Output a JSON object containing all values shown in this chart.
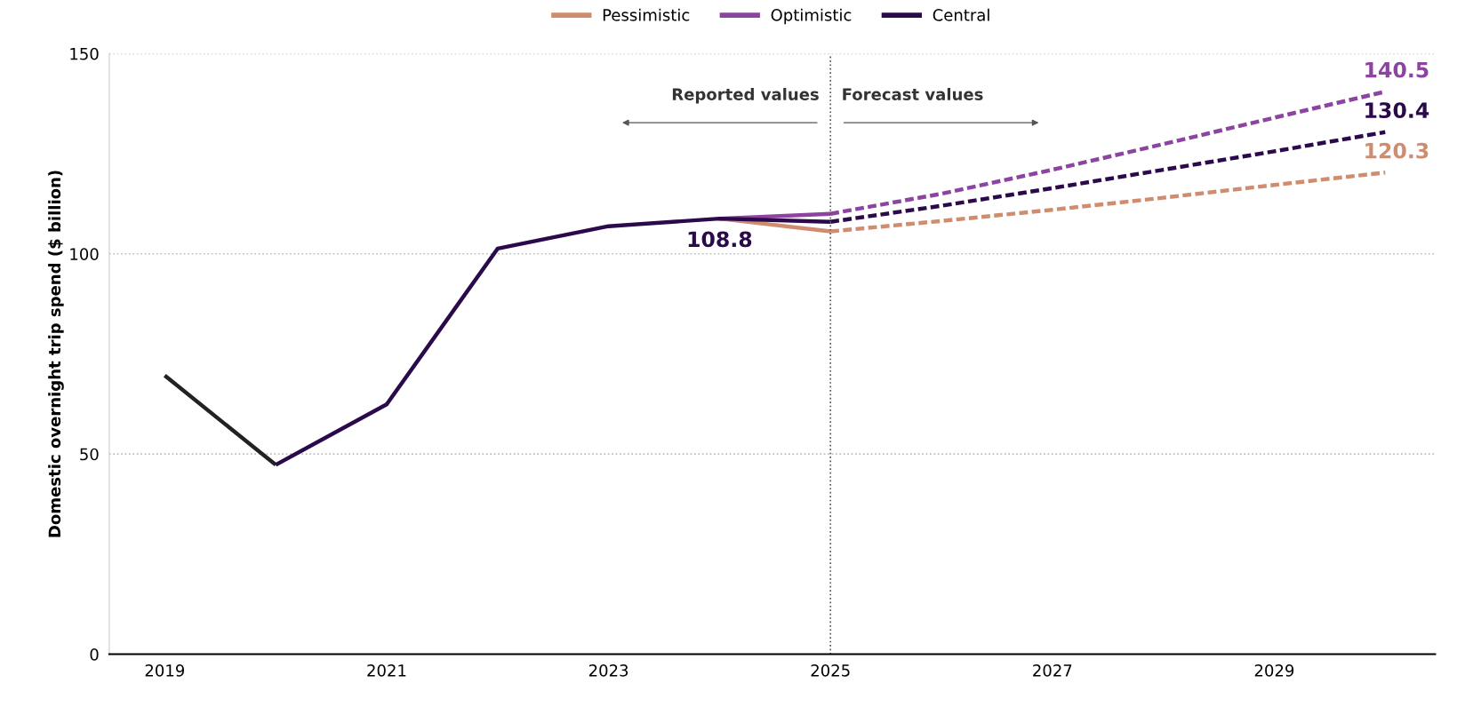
{
  "chart_data": {
    "type": "line",
    "ylabel": "Domestic overnight trip spend ($ billion)",
    "xlim": [
      2018.5,
      2030.45
    ],
    "xticks": [
      2019,
      2021,
      2023,
      2025,
      2027,
      2029
    ],
    "ylim": [
      0,
      150
    ],
    "yticks": [
      0,
      50,
      100,
      150
    ],
    "grid": "y",
    "legend": "top",
    "line_style": "solid",
    "marker": "none",
    "series": [
      {
        "color": "#222222",
        "x": [
          2019,
          2020
        ],
        "values": [
          69.6,
          47.3
        ]
      },
      {
        "name": "Pessimistic",
        "color": "#d08c6e",
        "x": [
          2024,
          2025
        ],
        "values": [
          108.8,
          105.6
        ]
      },
      {
        "name": "Optimistic",
        "color": "#8c44a0",
        "x": [
          2024,
          2025
        ],
        "values": [
          108.8,
          110.0
        ]
      },
      {
        "name": "Central",
        "color": "#2a0a4a",
        "x": [
          2020,
          2021,
          2022,
          2023,
          2024,
          2025
        ],
        "values": [
          47.3,
          62.4,
          101.3,
          106.9,
          108.8,
          108.0
        ],
        "value_labels": [
          null,
          null,
          null,
          null,
          "108.8",
          null
        ]
      },
      {
        "color": "#8c44a0",
        "line_style": "dashed",
        "x": [
          2025,
          2026,
          2027,
          2028,
          2029,
          2030
        ],
        "values": [
          110.0,
          115.0,
          121.0,
          127.4,
          134.0,
          140.5
        ],
        "value_labels": [
          null,
          null,
          null,
          null,
          null,
          "140.5"
        ]
      },
      {
        "color": "#2a0a4a",
        "line_style": "dashed",
        "x": [
          2025,
          2026,
          2027,
          2028,
          2029,
          2030
        ],
        "values": [
          108.0,
          112.0,
          116.4,
          121.0,
          125.6,
          130.4
        ],
        "value_labels": [
          null,
          null,
          null,
          null,
          null,
          "130.4"
        ]
      },
      {
        "color": "#d08c6e",
        "line_style": "dashed",
        "x": [
          2025,
          2026,
          2027,
          2028,
          2029,
          2030
        ],
        "values": [
          105.6,
          108.2,
          111.0,
          114.0,
          117.2,
          120.3
        ],
        "value_labels": [
          null,
          null,
          null,
          null,
          null,
          "120.3"
        ]
      }
    ],
    "ref_lines": [
      {
        "axis": "x",
        "value": 2025,
        "color": "#555555",
        "line_style": "dotted"
      }
    ],
    "annotations": [
      "Reported values",
      "Forecast values"
    ]
  }
}
